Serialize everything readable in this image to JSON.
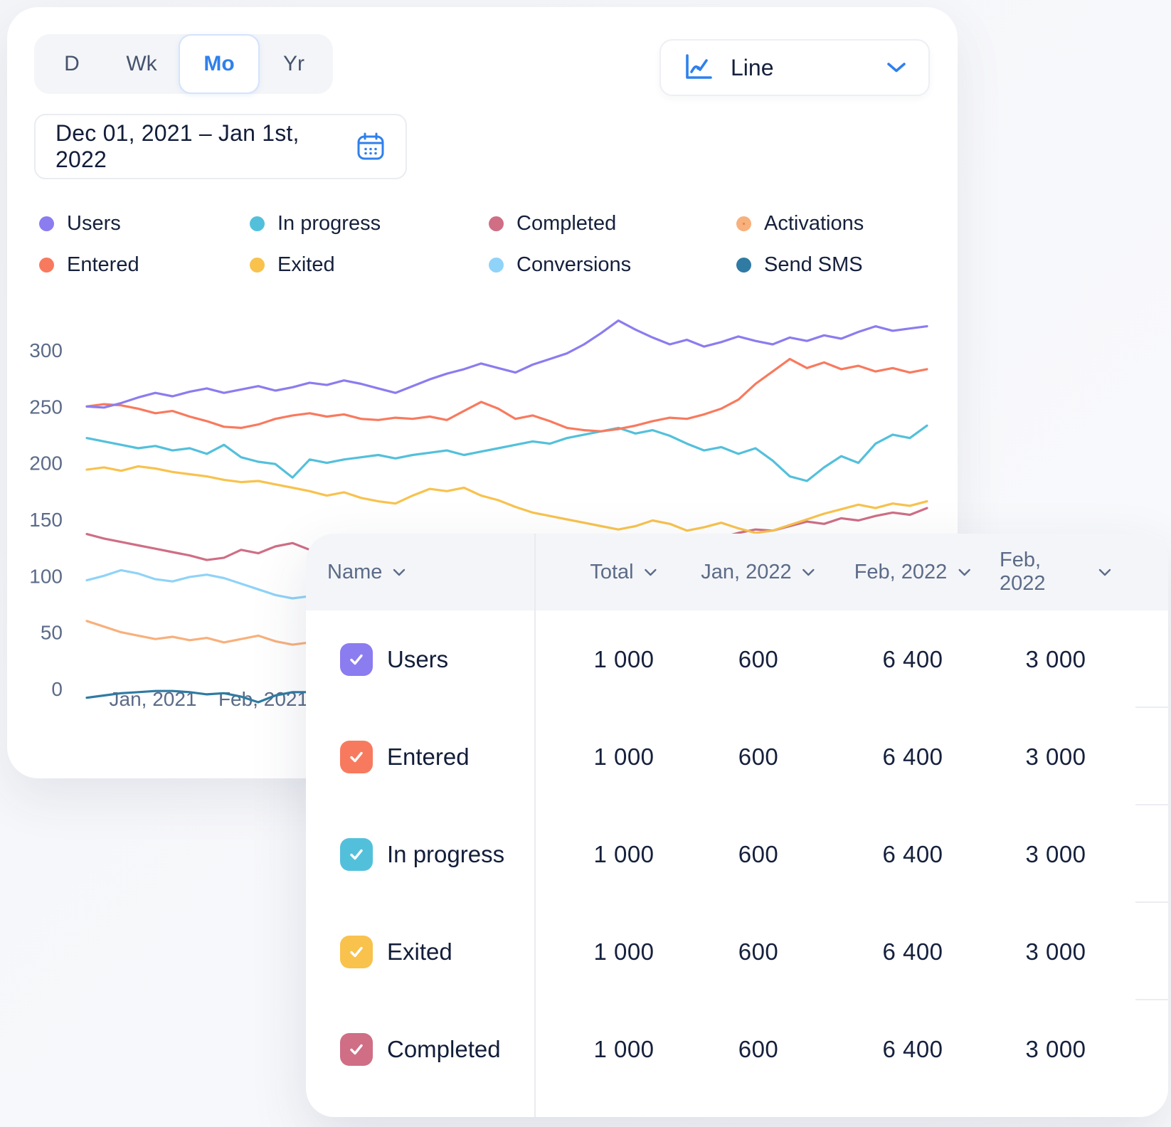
{
  "toolbar": {
    "range_tabs": [
      {
        "label": "D",
        "active": false
      },
      {
        "label": "Wk",
        "active": false
      },
      {
        "label": "Mo",
        "active": true
      },
      {
        "label": "Yr",
        "active": false
      }
    ],
    "chart_type_label": "Line",
    "date_range": "Dec 01, 2021 – Jan 1st, 2022"
  },
  "colors": {
    "accent_blue": "#2f80ed",
    "users": "#8B7CF0",
    "entered": "#F87A5E",
    "in_progress": "#53C0DB",
    "exited": "#F8C24D",
    "completed": "#CF6E85",
    "conversions": "#8FD3F8",
    "activations": "#F8B07C",
    "send_sms": "#2F7BA3"
  },
  "legend_order": [
    "Users",
    "In progress",
    "Completed",
    "Activations",
    "Entered",
    "Exited",
    "Conversions",
    "Send SMS"
  ],
  "chart_data": {
    "type": "line",
    "title": "",
    "ylim": [
      0,
      300
    ],
    "yticks": [
      300,
      250,
      200,
      150,
      100,
      50,
      0
    ],
    "x_visible_labels": [
      {
        "label": "Jan, 2021",
        "x": 205
      },
      {
        "label": "Feb, 2021",
        "x": 360
      }
    ],
    "grid": false,
    "legend_position": "top",
    "series": [
      {
        "name": "Send SMS",
        "color": "#2F7BA3",
        "dotted": false,
        "values": [
          -8,
          -6,
          -4,
          -3,
          -2,
          -2,
          -3,
          -5,
          -4,
          -7,
          -12,
          -6,
          -3,
          -3,
          -2,
          -3,
          -4,
          -3,
          -3,
          -2,
          -4,
          -6,
          -5,
          -4,
          -3,
          -5,
          -7,
          -4,
          -3,
          -5,
          -8,
          -6,
          -4,
          -3,
          -5,
          -4,
          -2,
          -3,
          -1,
          -3,
          -6,
          -8,
          -5,
          -7,
          -4,
          -6,
          -3,
          -5,
          -4,
          -3
        ]
      },
      {
        "name": "Activations",
        "color": "#F8B07C",
        "dotted": true,
        "values": [
          60,
          55,
          50,
          47,
          44,
          46,
          43,
          45,
          41,
          44,
          47,
          42,
          39,
          41,
          38,
          40,
          37,
          34,
          31,
          29,
          33,
          36,
          38,
          35,
          37,
          34,
          31,
          33,
          36,
          39,
          41,
          38,
          35,
          37,
          34,
          36,
          38,
          40,
          37,
          39,
          41,
          38,
          40,
          42,
          39,
          41,
          43,
          40,
          42,
          44
        ]
      },
      {
        "name": "Conversions",
        "color": "#8FD3F8",
        "dotted": false,
        "values": [
          96,
          100,
          105,
          102,
          97,
          95,
          99,
          101,
          98,
          93,
          88,
          83,
          80,
          82,
          79,
          81,
          77,
          74,
          70,
          66,
          68,
          72,
          75,
          73,
          76,
          74,
          71,
          69,
          72,
          70,
          67,
          70,
          73,
          71,
          68,
          66,
          69,
          71,
          74,
          72,
          70,
          73,
          75,
          72,
          74,
          71,
          69,
          72,
          70,
          73
        ]
      },
      {
        "name": "Completed",
        "color": "#CF6E85",
        "dotted": false,
        "values": [
          137,
          133,
          130,
          127,
          124,
          121,
          118,
          114,
          116,
          123,
          120,
          126,
          129,
          123,
          127,
          125,
          124,
          121,
          123,
          119,
          114,
          110,
          108,
          111,
          105,
          107,
          110,
          108,
          113,
          116,
          114,
          111,
          118,
          123,
          126,
          125,
          130,
          134,
          138,
          141,
          140,
          144,
          148,
          146,
          151,
          149,
          153,
          156,
          154,
          160
        ]
      },
      {
        "name": "Exited",
        "color": "#F8C24D",
        "dotted": false,
        "values": [
          194,
          196,
          193,
          197,
          195,
          192,
          190,
          188,
          185,
          183,
          184,
          181,
          178,
          175,
          171,
          174,
          169,
          166,
          164,
          171,
          177,
          175,
          178,
          171,
          167,
          161,
          156,
          153,
          150,
          147,
          144,
          141,
          144,
          149,
          146,
          140,
          143,
          147,
          142,
          138,
          140,
          145,
          150,
          155,
          159,
          163,
          160,
          164,
          162,
          166
        ]
      },
      {
        "name": "In progress",
        "color": "#53C0DB",
        "dotted": false,
        "values": [
          222,
          219,
          216,
          213,
          215,
          211,
          213,
          208,
          216,
          205,
          201,
          199,
          187,
          203,
          200,
          203,
          205,
          207,
          204,
          207,
          209,
          211,
          207,
          210,
          213,
          216,
          219,
          217,
          222,
          225,
          228,
          231,
          226,
          229,
          224,
          217,
          211,
          214,
          208,
          213,
          202,
          188,
          184,
          196,
          206,
          200,
          217,
          225,
          222,
          233
        ]
      },
      {
        "name": "Entered",
        "color": "#F87A5E",
        "dotted": false,
        "values": [
          250,
          252,
          251,
          248,
          244,
          246,
          241,
          237,
          232,
          231,
          234,
          239,
          242,
          244,
          241,
          243,
          239,
          238,
          240,
          239,
          241,
          238,
          246,
          254,
          248,
          239,
          242,
          237,
          231,
          229,
          228,
          230,
          233,
          237,
          240,
          239,
          243,
          248,
          256,
          270,
          281,
          292,
          284,
          289,
          283,
          286,
          281,
          284,
          280,
          283
        ]
      },
      {
        "name": "Users",
        "color": "#8B7CF0",
        "dotted": false,
        "values": [
          250,
          249,
          253,
          258,
          262,
          259,
          263,
          266,
          262,
          265,
          268,
          264,
          267,
          271,
          269,
          273,
          270,
          266,
          262,
          268,
          274,
          279,
          283,
          288,
          284,
          280,
          287,
          292,
          297,
          305,
          315,
          326,
          318,
          311,
          305,
          309,
          303,
          307,
          312,
          308,
          305,
          311,
          308,
          313,
          310,
          316,
          321,
          317,
          319,
          321
        ]
      }
    ]
  },
  "table": {
    "columns": [
      {
        "label": "Name"
      },
      {
        "label": "Total"
      },
      {
        "label": "Jan, 2022"
      },
      {
        "label": "Feb, 2022"
      },
      {
        "label": "Feb, 2022"
      }
    ],
    "rows": [
      {
        "label": "Users",
        "color": "#8B7CF0",
        "checked": true,
        "values": [
          "1 000",
          "600",
          "6 400",
          "3 000"
        ]
      },
      {
        "label": "Entered",
        "color": "#F87A5E",
        "checked": true,
        "values": [
          "1 000",
          "600",
          "6 400",
          "3 000"
        ]
      },
      {
        "label": "In progress",
        "color": "#53C0DB",
        "checked": true,
        "values": [
          "1 000",
          "600",
          "6 400",
          "3 000"
        ]
      },
      {
        "label": "Exited",
        "color": "#F8C24D",
        "checked": true,
        "values": [
          "1 000",
          "600",
          "6 400",
          "3 000"
        ]
      },
      {
        "label": "Completed",
        "color": "#CF6E85",
        "checked": true,
        "values": [
          "1 000",
          "600",
          "6 400",
          "3 000"
        ]
      }
    ]
  }
}
